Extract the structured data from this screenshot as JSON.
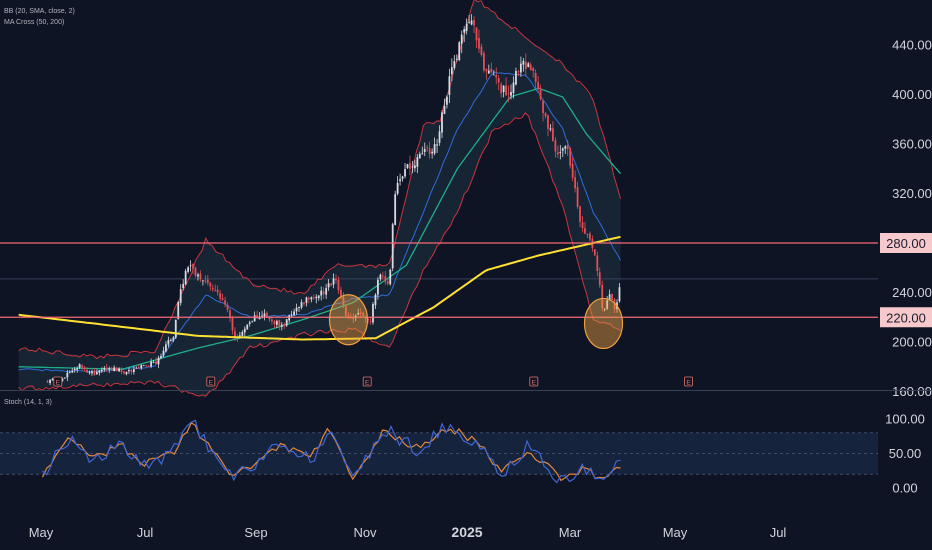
{
  "indicators": {
    "bb": "BB (20, SMA, close, 2)",
    "ma": "MA Cross (50, 200)",
    "stoch": "Stoch (14, 1, 3)"
  },
  "colors": {
    "background": "#0f1424",
    "candle_up": "#d7dae0",
    "candle_down": "#e64d56",
    "bb_fill": "#172536",
    "bb_bands": "#c6363e",
    "bb_basis": "#2f6cd9",
    "ma_fast": "#1fae8a",
    "ma_slow": "#ffe033",
    "hline": "#f26b74",
    "highlight": "#f0a040",
    "stoch_k": "#4066d4",
    "stoch_d": "#e3873a"
  },
  "chart_data": [
    {
      "type": "candlestick",
      "price_axis_ticks": [
        "440.00",
        "400.00",
        "360.00",
        "320.00",
        "280.00",
        "240.00",
        "220.00",
        "200.00",
        "160.00"
      ],
      "ylim": [
        150,
        470
      ],
      "x_labels": [
        "May",
        "Jul",
        "Sep",
        "Nov",
        "2025",
        "Mar",
        "May",
        "Jul"
      ],
      "horizontal_levels": [
        {
          "label": "280.00",
          "value": 280
        },
        {
          "label": "220.00",
          "value": 220
        }
      ],
      "current_price_level": 251,
      "highlight_circles": [
        {
          "date": "2024-10-12",
          "price": 218
        },
        {
          "date": "2025-03-11",
          "price": 215
        }
      ],
      "event_markers": [
        {
          "date": "2024-04-24",
          "label": "E"
        },
        {
          "date": "2024-07-23",
          "label": "E"
        },
        {
          "date": "2024-10-23",
          "label": "E"
        },
        {
          "date": "2025-01-29",
          "label": "E"
        },
        {
          "date": "2025-04-30",
          "label": "E"
        }
      ],
      "close_path": [
        [
          "2024-04-18",
          168
        ],
        [
          "2024-04-26",
          170
        ],
        [
          "2024-05-06",
          181
        ],
        [
          "2024-05-15",
          174
        ],
        [
          "2024-05-24",
          179
        ],
        [
          "2024-06-04",
          176
        ],
        [
          "2024-06-13",
          180
        ],
        [
          "2024-06-21",
          184
        ],
        [
          "2024-07-01",
          206
        ],
        [
          "2024-07-05",
          242
        ],
        [
          "2024-07-10",
          262
        ],
        [
          "2024-07-16",
          252
        ],
        [
          "2024-07-23",
          245
        ],
        [
          "2024-07-31",
          232
        ],
        [
          "2024-08-07",
          200
        ],
        [
          "2024-08-15",
          218
        ],
        [
          "2024-08-23",
          222
        ],
        [
          "2024-09-03",
          212
        ],
        [
          "2024-09-11",
          228
        ],
        [
          "2024-09-19",
          235
        ],
        [
          "2024-09-27",
          240
        ],
        [
          "2024-10-04",
          252
        ],
        [
          "2024-10-11",
          218
        ],
        [
          "2024-10-18",
          222
        ],
        [
          "2024-10-25",
          218
        ],
        [
          "2024-10-30",
          255
        ],
        [
          "2024-11-05",
          248
        ],
        [
          "2024-11-08",
          320
        ],
        [
          "2024-11-14",
          340
        ],
        [
          "2024-11-22",
          348
        ],
        [
          "2024-12-03",
          360
        ],
        [
          "2024-12-10",
          410
        ],
        [
          "2024-12-17",
          445
        ],
        [
          "2024-12-24",
          460
        ],
        [
          "2024-12-31",
          420
        ],
        [
          "2025-01-07",
          410
        ],
        [
          "2025-01-14",
          398
        ],
        [
          "2025-01-21",
          425
        ],
        [
          "2025-01-28",
          420
        ],
        [
          "2025-02-04",
          385
        ],
        [
          "2025-02-11",
          355
        ],
        [
          "2025-02-18",
          355
        ],
        [
          "2025-02-26",
          292
        ],
        [
          "2025-03-04",
          280
        ],
        [
          "2025-03-07",
          263
        ],
        [
          "2025-03-11",
          222
        ],
        [
          "2025-03-14",
          240
        ],
        [
          "2025-03-18",
          225
        ],
        [
          "2025-03-21",
          248
        ]
      ],
      "ma_slow_path": [
        [
          "2024-04-01",
          222
        ],
        [
          "2024-05-15",
          215
        ],
        [
          "2024-07-15",
          205
        ],
        [
          "2024-09-15",
          202
        ],
        [
          "2024-10-28",
          203
        ],
        [
          "2024-12-01",
          228
        ],
        [
          "2025-01-01",
          258
        ],
        [
          "2025-02-01",
          270
        ],
        [
          "2025-03-21",
          285
        ]
      ],
      "ma_fast_path": [
        [
          "2024-04-01",
          180
        ],
        [
          "2024-06-01",
          178
        ],
        [
          "2024-07-15",
          195
        ],
        [
          "2024-08-15",
          205
        ],
        [
          "2024-09-15",
          218
        ],
        [
          "2024-10-15",
          232
        ],
        [
          "2024-11-15",
          262
        ],
        [
          "2024-12-15",
          340
        ],
        [
          "2025-01-15",
          398
        ],
        [
          "2025-02-01",
          405
        ],
        [
          "2025-02-15",
          398
        ],
        [
          "2025-03-01",
          368
        ],
        [
          "2025-03-21",
          336
        ]
      ],
      "bb_basis_path": [
        [
          "2024-04-01",
          178
        ],
        [
          "2024-05-15",
          176
        ],
        [
          "2024-06-20",
          180
        ],
        [
          "2024-07-20",
          238
        ],
        [
          "2024-08-15",
          220
        ],
        [
          "2024-09-15",
          222
        ],
        [
          "2024-10-15",
          235
        ],
        [
          "2024-11-05",
          238
        ],
        [
          "2024-11-25",
          305
        ],
        [
          "2024-12-15",
          372
        ],
        [
          "2025-01-05",
          418
        ],
        [
          "2025-01-25",
          415
        ],
        [
          "2025-02-15",
          372
        ],
        [
          "2025-03-05",
          305
        ],
        [
          "2025-03-21",
          266
        ]
      ],
      "bb_upper_path": [
        [
          "2024-04-01",
          195
        ],
        [
          "2024-05-15",
          188
        ],
        [
          "2024-06-20",
          192
        ],
        [
          "2024-07-20",
          282
        ],
        [
          "2024-08-15",
          248
        ],
        [
          "2024-09-15",
          238
        ],
        [
          "2024-10-05",
          262
        ],
        [
          "2024-11-05",
          262
        ],
        [
          "2024-11-25",
          375
        ],
        [
          "2024-12-05",
          380
        ],
        [
          "2024-12-25",
          478
        ],
        [
          "2025-01-25",
          445
        ],
        [
          "2025-02-15",
          425
        ],
        [
          "2025-03-05",
          396
        ],
        [
          "2025-03-21",
          315
        ]
      ],
      "bb_lower_path": [
        [
          "2024-04-01",
          162
        ],
        [
          "2024-05-15",
          165
        ],
        [
          "2024-06-20",
          168
        ],
        [
          "2024-07-20",
          155
        ],
        [
          "2024-08-15",
          195
        ],
        [
          "2024-09-15",
          206
        ],
        [
          "2024-10-15",
          210
        ],
        [
          "2024-11-05",
          195
        ],
        [
          "2024-11-25",
          258
        ],
        [
          "2024-12-15",
          305
        ],
        [
          "2025-01-05",
          372
        ],
        [
          "2025-01-25",
          385
        ],
        [
          "2025-02-15",
          310
        ],
        [
          "2025-03-05",
          218
        ],
        [
          "2025-03-21",
          210
        ]
      ]
    },
    {
      "type": "line",
      "name": "Stoch (14, 1, 3)",
      "y_axis_ticks": [
        "100.00",
        "50.00",
        "0.00"
      ],
      "ylim": [
        0,
        100
      ],
      "bands": [
        80,
        50,
        20
      ],
      "k_path": [
        [
          "2024-04-15",
          20
        ],
        [
          "2024-05-01",
          75
        ],
        [
          "2024-05-15",
          40
        ],
        [
          "2024-06-01",
          65
        ],
        [
          "2024-06-15",
          30
        ],
        [
          "2024-07-01",
          55
        ],
        [
          "2024-07-12",
          95
        ],
        [
          "2024-08-05",
          10
        ],
        [
          "2024-09-01",
          65
        ],
        [
          "2024-09-20",
          40
        ],
        [
          "2024-10-01",
          92
        ],
        [
          "2024-10-15",
          5
        ],
        [
          "2024-11-01",
          88
        ],
        [
          "2024-11-20",
          55
        ],
        [
          "2024-12-10",
          90
        ],
        [
          "2024-12-30",
          60
        ],
        [
          "2025-01-10",
          15
        ],
        [
          "2025-01-25",
          60
        ],
        [
          "2025-02-15",
          10
        ],
        [
          "2025-03-01",
          30
        ],
        [
          "2025-03-11",
          8
        ],
        [
          "2025-03-21",
          45
        ]
      ],
      "d_path": [
        [
          "2024-04-15",
          18
        ],
        [
          "2024-05-01",
          70
        ],
        [
          "2024-05-15",
          45
        ],
        [
          "2024-06-01",
          60
        ],
        [
          "2024-06-15",
          35
        ],
        [
          "2024-07-01",
          50
        ],
        [
          "2024-07-12",
          92
        ],
        [
          "2024-08-05",
          15
        ],
        [
          "2024-09-01",
          60
        ],
        [
          "2024-09-20",
          45
        ],
        [
          "2024-10-01",
          88
        ],
        [
          "2024-10-15",
          8
        ],
        [
          "2024-11-01",
          84
        ],
        [
          "2024-11-20",
          58
        ],
        [
          "2024-12-10",
          87
        ],
        [
          "2024-12-30",
          63
        ],
        [
          "2025-01-10",
          20
        ],
        [
          "2025-01-25",
          55
        ],
        [
          "2025-02-15",
          14
        ],
        [
          "2025-03-01",
          27
        ],
        [
          "2025-03-11",
          12
        ],
        [
          "2025-03-21",
          30
        ]
      ]
    }
  ]
}
